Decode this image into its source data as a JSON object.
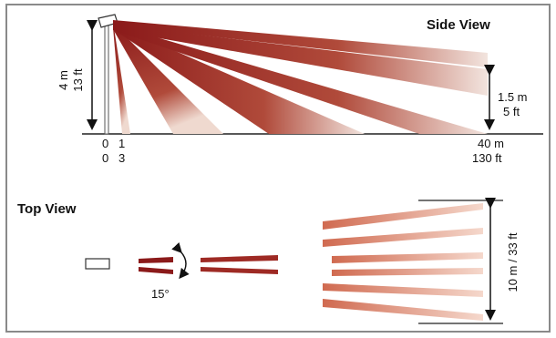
{
  "side_view": {
    "title": "Side View",
    "mount_height_m": "4 m",
    "mount_height_ft": "13 ft",
    "target_height_m": "1.5 m",
    "target_height_ft": "5 ft",
    "x_tick_m": [
      "0",
      "1",
      "40 m"
    ],
    "x_tick_ft": [
      "0",
      "3",
      "130 ft"
    ]
  },
  "top_view": {
    "title": "Top View",
    "angle_label": "15°",
    "width_label": "10 m / 33 ft"
  },
  "colors": {
    "frame": "#8a8a8a",
    "beam_dark": "#8b1a1a",
    "beam_mid": "#b85a4a",
    "beam_light": "#e08a6a",
    "text": "#111111"
  }
}
